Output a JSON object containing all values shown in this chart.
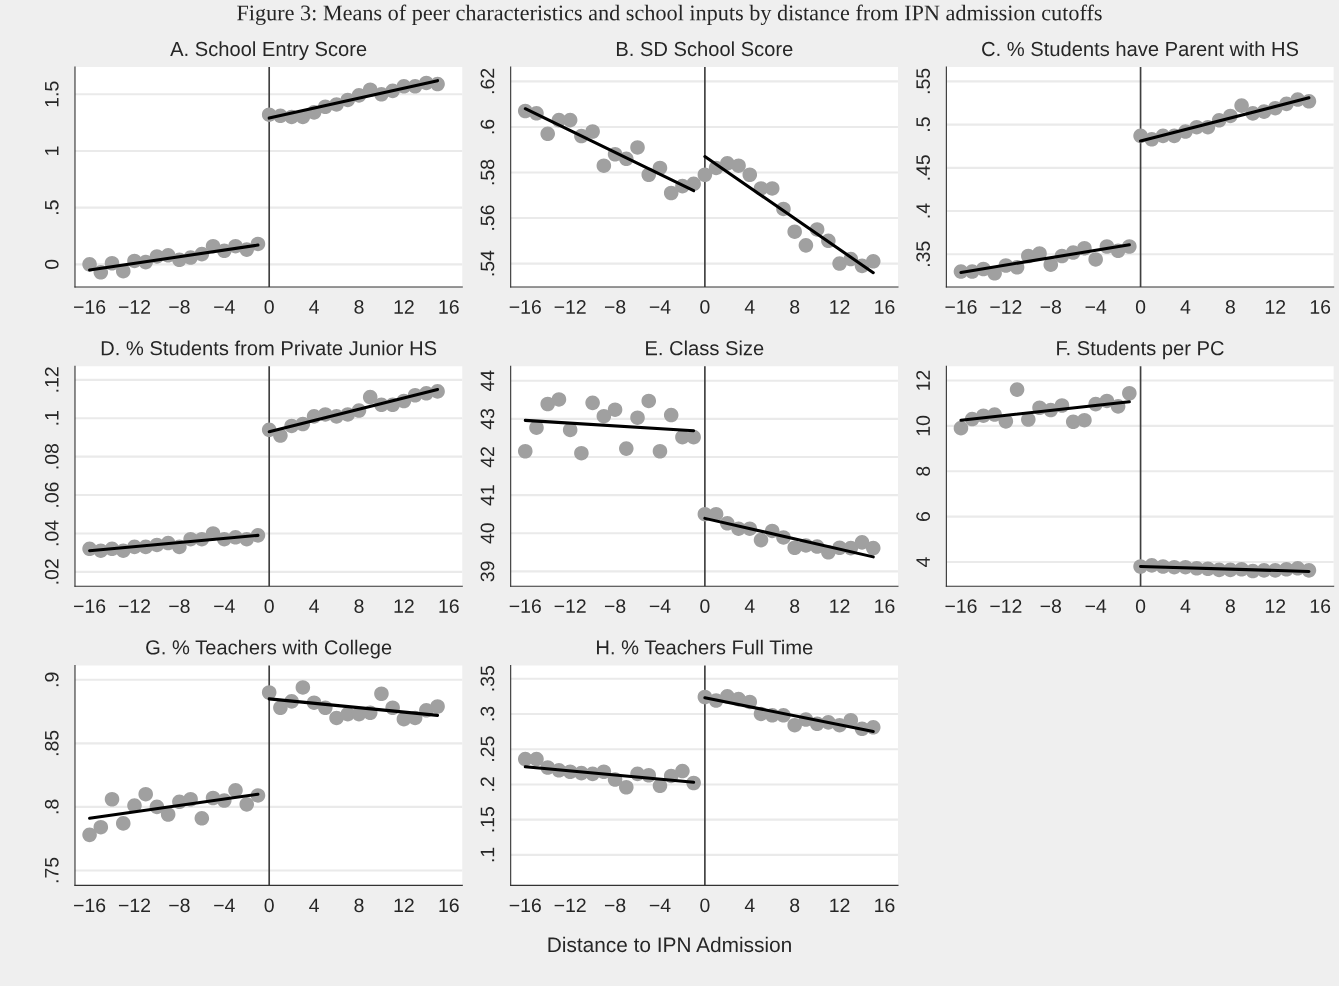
{
  "chart_data": [
    {
      "type": "scatter",
      "title": "A. School Entry Score",
      "annotations": [
        "Figure 3: Means of peer characteristics and school inputs by distance from IPN admission cutoffs"
      ],
      "x": [
        -16,
        -15,
        -14,
        -13,
        -12,
        -11,
        -10,
        -9,
        -8,
        -7,
        -6,
        -5,
        -4,
        -3,
        -2,
        -1,
        0,
        1,
        2,
        3,
        4,
        5,
        6,
        7,
        8,
        9,
        10,
        11,
        12,
        13,
        14,
        15
      ],
      "series": [
        {
          "marker": "circle",
          "color": "#a0a0a0",
          "values": [
            0.0,
            -0.07,
            0.01,
            -0.06,
            0.03,
            0.02,
            0.07,
            0.08,
            0.04,
            0.06,
            0.09,
            0.16,
            0.12,
            0.16,
            0.13,
            0.18,
            1.32,
            1.31,
            1.3,
            1.3,
            1.34,
            1.39,
            1.41,
            1.45,
            1.49,
            1.54,
            1.5,
            1.53,
            1.57,
            1.57,
            1.6,
            1.59
          ]
        },
        {
          "type": "line",
          "color": "#000000",
          "x": [
            -16,
            -1
          ],
          "values": [
            -0.05,
            0.17
          ]
        },
        {
          "type": "line",
          "color": "#000000",
          "x": [
            0,
            15
          ],
          "values": [
            1.29,
            1.62
          ]
        }
      ],
      "xlim": [
        -17.3,
        17.2
      ],
      "ylim": [
        -0.2,
        1.74
      ],
      "xticks": [
        {
          "value": -16,
          "label": "−16"
        },
        {
          "value": -12,
          "label": "−12"
        },
        {
          "value": -8,
          "label": "−8"
        },
        {
          "value": -4,
          "label": "−4"
        },
        0,
        4,
        8,
        12,
        16
      ],
      "yticks": [
        0,
        {
          "value": 0.5,
          "label": ".5"
        },
        1,
        1.5
      ],
      "ref_lines": [
        {
          "axis": "x",
          "value": 0,
          "color": "#404040"
        }
      ],
      "grid": "y",
      "legend": false
    },
    {
      "type": "scatter",
      "title": "B. SD School Score",
      "x": [
        -16,
        -15,
        -14,
        -13,
        -12,
        -11,
        -10,
        -9,
        -8,
        -7,
        -6,
        -5,
        -4,
        -3,
        -2,
        -1,
        0,
        1,
        2,
        3,
        4,
        5,
        6,
        7,
        8,
        9,
        10,
        11,
        12,
        13,
        14,
        15
      ],
      "series": [
        {
          "marker": "circle",
          "color": "#a0a0a0",
          "values": [
            0.607,
            0.606,
            0.597,
            0.603,
            0.603,
            0.596,
            0.598,
            0.583,
            0.588,
            0.586,
            0.591,
            0.579,
            0.582,
            0.571,
            0.574,
            0.575,
            0.579,
            0.582,
            0.584,
            0.583,
            0.579,
            0.573,
            0.573,
            0.564,
            0.554,
            0.548,
            0.555,
            0.55,
            0.54,
            0.542,
            0.539,
            0.541
          ]
        },
        {
          "type": "line",
          "color": "#000000",
          "x": [
            -16,
            -1
          ],
          "values": [
            0.608,
            0.572
          ]
        },
        {
          "type": "line",
          "color": "#000000",
          "x": [
            0,
            15
          ],
          "values": [
            0.587,
            0.536
          ]
        }
      ],
      "xlim": [
        -17.3,
        17.2
      ],
      "ylim": [
        0.5297,
        0.6263
      ],
      "xticks": [
        {
          "value": -16,
          "label": "−16"
        },
        {
          "value": -12,
          "label": "−12"
        },
        {
          "value": -8,
          "label": "−8"
        },
        {
          "value": -4,
          "label": "−4"
        },
        0,
        4,
        8,
        12,
        16
      ],
      "yticks": [
        {
          "value": 0.54,
          "label": ".54"
        },
        {
          "value": 0.56,
          "label": ".56"
        },
        {
          "value": 0.58,
          "label": ".58"
        },
        {
          "value": 0.6,
          "label": ".6"
        },
        {
          "value": 0.62,
          "label": ".62"
        }
      ],
      "ref_lines": [
        {
          "axis": "x",
          "value": 0,
          "color": "#404040"
        }
      ],
      "grid": "y",
      "legend": false
    },
    {
      "type": "scatter",
      "title": "C. % Students have Parent with HS",
      "x": [
        -16,
        -15,
        -14,
        -13,
        -12,
        -11,
        -10,
        -9,
        -8,
        -7,
        -6,
        -5,
        -4,
        -3,
        -2,
        -1,
        0,
        1,
        2,
        3,
        4,
        5,
        6,
        7,
        8,
        9,
        10,
        11,
        12,
        13,
        14,
        15
      ],
      "series": [
        {
          "marker": "circle",
          "color": "#a0a0a0",
          "values": [
            0.33,
            0.33,
            0.333,
            0.328,
            0.337,
            0.335,
            0.348,
            0.351,
            0.338,
            0.348,
            0.352,
            0.357,
            0.344,
            0.359,
            0.354,
            0.359,
            0.487,
            0.483,
            0.487,
            0.487,
            0.492,
            0.497,
            0.497,
            0.505,
            0.51,
            0.522,
            0.513,
            0.515,
            0.519,
            0.524,
            0.529,
            0.527
          ]
        },
        {
          "type": "line",
          "color": "#000000",
          "x": [
            -16,
            -1
          ],
          "values": [
            0.329,
            0.361
          ]
        },
        {
          "type": "line",
          "color": "#000000",
          "x": [
            0,
            15
          ],
          "values": [
            0.481,
            0.531
          ]
        }
      ],
      "xlim": [
        -17.3,
        17.2
      ],
      "ylim": [
        0.3121,
        0.5666
      ],
      "xticks": [
        {
          "value": -16,
          "label": "−16"
        },
        {
          "value": -12,
          "label": "−12"
        },
        {
          "value": -8,
          "label": "−8"
        },
        {
          "value": -4,
          "label": "−4"
        },
        0,
        4,
        8,
        12,
        16
      ],
      "yticks": [
        {
          "value": 0.35,
          "label": ".35"
        },
        {
          "value": 0.4,
          "label": ".4"
        },
        {
          "value": 0.45,
          "label": ".45"
        },
        {
          "value": 0.5,
          "label": ".5"
        },
        {
          "value": 0.55,
          "label": ".55"
        }
      ],
      "ref_lines": [
        {
          "axis": "x",
          "value": 0,
          "color": "#404040"
        }
      ],
      "grid": "y",
      "legend": false
    },
    {
      "type": "scatter",
      "title": "D. % Students from Private Junior HS",
      "x": [
        -16,
        -15,
        -14,
        -13,
        -12,
        -11,
        -10,
        -9,
        -8,
        -7,
        -6,
        -5,
        -4,
        -3,
        -2,
        -1,
        0,
        1,
        2,
        3,
        4,
        5,
        6,
        7,
        8,
        9,
        10,
        11,
        12,
        13,
        14,
        15
      ],
      "series": [
        {
          "marker": "circle",
          "color": "#a0a0a0",
          "values": [
            0.032,
            0.031,
            0.032,
            0.031,
            0.033,
            0.033,
            0.034,
            0.035,
            0.033,
            0.037,
            0.037,
            0.04,
            0.037,
            0.038,
            0.037,
            0.039,
            0.094,
            0.091,
            0.096,
            0.097,
            0.101,
            0.102,
            0.101,
            0.102,
            0.104,
            0.111,
            0.107,
            0.107,
            0.109,
            0.112,
            0.113,
            0.114
          ]
        },
        {
          "type": "line",
          "color": "#000000",
          "x": [
            -16,
            -1
          ],
          "values": [
            0.031,
            0.039
          ]
        },
        {
          "type": "line",
          "color": "#000000",
          "x": [
            0,
            15
          ],
          "values": [
            0.093,
            0.115
          ]
        }
      ],
      "xlim": [
        -17.3,
        17.2
      ],
      "ylim": [
        0.0125,
        0.1271
      ],
      "xticks": [
        {
          "value": -16,
          "label": "−16"
        },
        {
          "value": -12,
          "label": "−12"
        },
        {
          "value": -8,
          "label": "−8"
        },
        {
          "value": -4,
          "label": "−4"
        },
        0,
        4,
        8,
        12,
        16
      ],
      "yticks": [
        {
          "value": 0.02,
          "label": ".02"
        },
        {
          "value": 0.04,
          "label": ".04"
        },
        {
          "value": 0.06,
          "label": ".06"
        },
        {
          "value": 0.08,
          "label": ".08"
        },
        {
          "value": 0.1,
          "label": ".1"
        },
        {
          "value": 0.12,
          "label": ".12"
        }
      ],
      "ref_lines": [
        {
          "axis": "x",
          "value": 0,
          "color": "#404040"
        }
      ],
      "grid": "y",
      "legend": false
    },
    {
      "type": "scatter",
      "title": "E. Class Size",
      "x": [
        -16,
        -15,
        -14,
        -13,
        -12,
        -11,
        -10,
        -9,
        -8,
        -7,
        -6,
        -5,
        -4,
        -3,
        -2,
        -1,
        0,
        1,
        2,
        3,
        4,
        5,
        6,
        7,
        8,
        9,
        10,
        11,
        12,
        13,
        14,
        15
      ],
      "series": [
        {
          "marker": "circle",
          "color": "#a0a0a0",
          "values": [
            42.15,
            42.77,
            43.39,
            43.51,
            42.71,
            42.1,
            43.42,
            43.07,
            43.24,
            42.22,
            43.03,
            43.47,
            42.15,
            43.1,
            42.52,
            42.52,
            40.5,
            40.5,
            40.26,
            40.12,
            40.12,
            39.82,
            40.06,
            39.89,
            39.62,
            39.68,
            39.65,
            39.5,
            39.62,
            39.61,
            39.76,
            39.61
          ]
        },
        {
          "type": "line",
          "color": "#000000",
          "x": [
            -16,
            -1
          ],
          "values": [
            42.96,
            42.69
          ]
        },
        {
          "type": "line",
          "color": "#000000",
          "x": [
            0,
            15
          ],
          "values": [
            40.39,
            39.38
          ]
        }
      ],
      "xlim": [
        -17.3,
        17.2
      ],
      "ylim": [
        38.61,
        44.38
      ],
      "xticks": [
        {
          "value": -16,
          "label": "−16"
        },
        {
          "value": -12,
          "label": "−12"
        },
        {
          "value": -8,
          "label": "−8"
        },
        {
          "value": -4,
          "label": "−4"
        },
        0,
        4,
        8,
        12,
        16
      ],
      "yticks": [
        39,
        40,
        41,
        42,
        43,
        44
      ],
      "ref_lines": [
        {
          "axis": "x",
          "value": 0,
          "color": "#404040"
        }
      ],
      "grid": "y",
      "legend": false
    },
    {
      "type": "scatter",
      "title": "F. Students per PC",
      "x": [
        -16,
        -15,
        -14,
        -13,
        -12,
        -11,
        -10,
        -9,
        -8,
        -7,
        -6,
        -5,
        -4,
        -3,
        -2,
        -1,
        0,
        1,
        2,
        3,
        4,
        5,
        6,
        7,
        8,
        9,
        10,
        11,
        12,
        13,
        14,
        15
      ],
      "series": [
        {
          "marker": "circle",
          "color": "#a0a0a0",
          "values": [
            9.9,
            10.3,
            10.45,
            10.5,
            10.2,
            11.6,
            10.28,
            10.8,
            10.7,
            10.9,
            10.18,
            10.25,
            10.96,
            11.1,
            10.86,
            11.44,
            3.8,
            3.85,
            3.8,
            3.77,
            3.77,
            3.72,
            3.7,
            3.65,
            3.65,
            3.68,
            3.6,
            3.63,
            3.63,
            3.68,
            3.72,
            3.63
          ]
        },
        {
          "type": "line",
          "color": "#000000",
          "x": [
            -16,
            -1
          ],
          "values": [
            10.25,
            11.06
          ]
        },
        {
          "type": "line",
          "color": "#000000",
          "x": [
            0,
            15
          ],
          "values": [
            3.8,
            3.58
          ]
        }
      ],
      "xlim": [
        -17.3,
        17.2
      ],
      "ylim": [
        2.93,
        12.63
      ],
      "xticks": [
        {
          "value": -16,
          "label": "−16"
        },
        {
          "value": -12,
          "label": "−12"
        },
        {
          "value": -8,
          "label": "−8"
        },
        {
          "value": -4,
          "label": "−4"
        },
        0,
        4,
        8,
        12,
        16
      ],
      "yticks": [
        4,
        6,
        8,
        10,
        12
      ],
      "ref_lines": [
        {
          "axis": "x",
          "value": 0,
          "color": "#404040"
        }
      ],
      "grid": "y",
      "legend": false
    },
    {
      "type": "scatter",
      "title": "G. % Teachers with College",
      "x": [
        -16,
        -15,
        -14,
        -13,
        -12,
        -11,
        -10,
        -9,
        -8,
        -7,
        -6,
        -5,
        -4,
        -3,
        -2,
        -1,
        0,
        1,
        2,
        3,
        4,
        5,
        6,
        7,
        8,
        9,
        10,
        11,
        12,
        13,
        14,
        15
      ],
      "series": [
        {
          "marker": "circle",
          "color": "#a0a0a0",
          "values": [
            0.778,
            0.784,
            0.806,
            0.787,
            0.801,
            0.81,
            0.8,
            0.794,
            0.804,
            0.806,
            0.791,
            0.807,
            0.805,
            0.813,
            0.802,
            0.809,
            0.89,
            0.878,
            0.883,
            0.894,
            0.882,
            0.878,
            0.87,
            0.873,
            0.873,
            0.874,
            0.889,
            0.878,
            0.869,
            0.87,
            0.876,
            0.879
          ]
        },
        {
          "type": "line",
          "color": "#000000",
          "x": [
            -16,
            -1
          ],
          "values": [
            0.791,
            0.81
          ]
        },
        {
          "type": "line",
          "color": "#000000",
          "x": [
            0,
            15
          ],
          "values": [
            0.885,
            0.872
          ]
        }
      ],
      "xlim": [
        -17.3,
        17.2
      ],
      "ylim": [
        0.7382,
        0.9113
      ],
      "xticks": [
        {
          "value": -16,
          "label": "−16"
        },
        {
          "value": -12,
          "label": "−12"
        },
        {
          "value": -8,
          "label": "−8"
        },
        {
          "value": -4,
          "label": "−4"
        },
        0,
        4,
        8,
        12,
        16
      ],
      "yticks": [
        {
          "value": 0.75,
          "label": ".75"
        },
        {
          "value": 0.8,
          "label": ".8"
        },
        {
          "value": 0.85,
          "label": ".85"
        },
        {
          "value": 0.9,
          "label": ".9"
        }
      ],
      "ref_lines": [
        {
          "axis": "x",
          "value": 0,
          "color": "#404040"
        }
      ],
      "grid": "y",
      "legend": false
    },
    {
      "type": "scatter",
      "title": "H. % Teachers Full Time",
      "annotations": [
        "Distance to IPN Admission"
      ],
      "x": [
        -16,
        -15,
        -14,
        -13,
        -12,
        -11,
        -10,
        -9,
        -8,
        -7,
        -6,
        -5,
        -4,
        -3,
        -2,
        -1,
        0,
        1,
        2,
        3,
        4,
        5,
        6,
        7,
        8,
        9,
        10,
        11,
        12,
        13,
        14,
        15
      ],
      "series": [
        {
          "marker": "circle",
          "color": "#a0a0a0",
          "values": [
            0.236,
            0.236,
            0.224,
            0.22,
            0.218,
            0.216,
            0.215,
            0.218,
            0.207,
            0.196,
            0.215,
            0.213,
            0.198,
            0.212,
            0.219,
            0.202,
            0.324,
            0.319,
            0.325,
            0.321,
            0.317,
            0.3,
            0.298,
            0.298,
            0.284,
            0.292,
            0.286,
            0.288,
            0.284,
            0.291,
            0.279,
            0.281
          ]
        },
        {
          "type": "line",
          "color": "#000000",
          "x": [
            -16,
            -1
          ],
          "values": [
            0.225,
            0.203
          ]
        },
        {
          "type": "line",
          "color": "#000000",
          "x": [
            0,
            15
          ],
          "values": [
            0.323,
            0.275
          ]
        }
      ],
      "xlim": [
        -17.3,
        17.2
      ],
      "ylim": [
        0.0567,
        0.3688
      ],
      "xticks": [
        {
          "value": -16,
          "label": "−16"
        },
        {
          "value": -12,
          "label": "−12"
        },
        {
          "value": -8,
          "label": "−8"
        },
        {
          "value": -4,
          "label": "−4"
        },
        0,
        4,
        8,
        12,
        16
      ],
      "yticks": [
        {
          "value": 0.1,
          "label": ".1"
        },
        {
          "value": 0.15,
          "label": ".15"
        },
        {
          "value": 0.2,
          "label": ".2"
        },
        {
          "value": 0.25,
          "label": ".25"
        },
        {
          "value": 0.3,
          "label": ".3"
        },
        {
          "value": 0.35,
          "label": ".35"
        }
      ],
      "ref_lines": [
        {
          "axis": "x",
          "value": 0,
          "color": "#404040"
        }
      ],
      "grid": "y",
      "legend": false
    }
  ]
}
